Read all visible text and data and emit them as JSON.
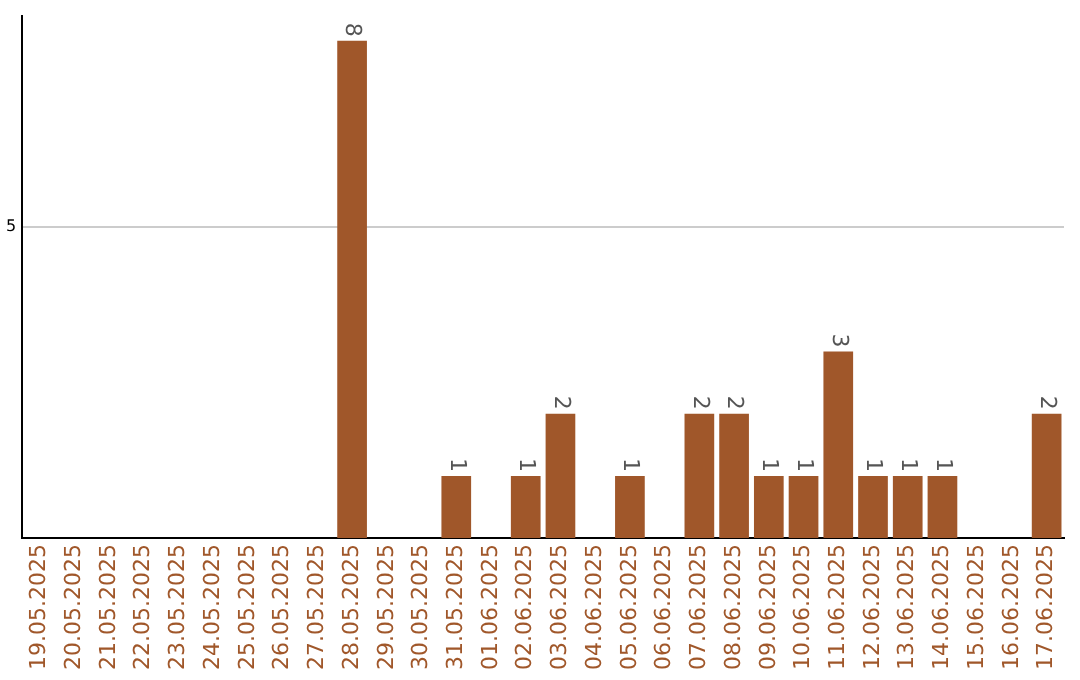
{
  "chart_data": {
    "type": "bar",
    "categories": [
      "19.05.2025",
      "20.05.2025",
      "21.05.2025",
      "22.05.2025",
      "23.05.2025",
      "24.05.2025",
      "25.05.2025",
      "26.05.2025",
      "27.05.2025",
      "28.05.2025",
      "29.05.2025",
      "30.05.2025",
      "31.05.2025",
      "01.06.2025",
      "02.06.2025",
      "03.06.2025",
      "04.06.2025",
      "05.06.2025",
      "06.06.2025",
      "07.06.2025",
      "08.06.2025",
      "09.06.2025",
      "10.06.2025",
      "11.06.2025",
      "12.06.2025",
      "13.06.2025",
      "14.06.2025",
      "15.06.2025",
      "16.06.2025",
      "17.06.2025"
    ],
    "values": [
      0,
      0,
      0,
      0,
      0,
      0,
      0,
      0,
      0,
      8,
      0,
      0,
      1,
      0,
      1,
      2,
      0,
      1,
      0,
      2,
      2,
      1,
      1,
      3,
      1,
      1,
      1,
      0,
      0,
      2
    ],
    "value_labels": [
      null,
      null,
      null,
      null,
      null,
      null,
      null,
      null,
      null,
      "8",
      null,
      null,
      "1",
      null,
      "1",
      "2",
      null,
      "1",
      null,
      "2",
      "2",
      "1",
      "1",
      "3",
      "1",
      "1",
      "1",
      null,
      null,
      "2"
    ],
    "color": "#a0572a",
    "ylim": [
      0,
      8.4
    ],
    "yticks": [
      5
    ],
    "grid": "y",
    "legend": false
  }
}
